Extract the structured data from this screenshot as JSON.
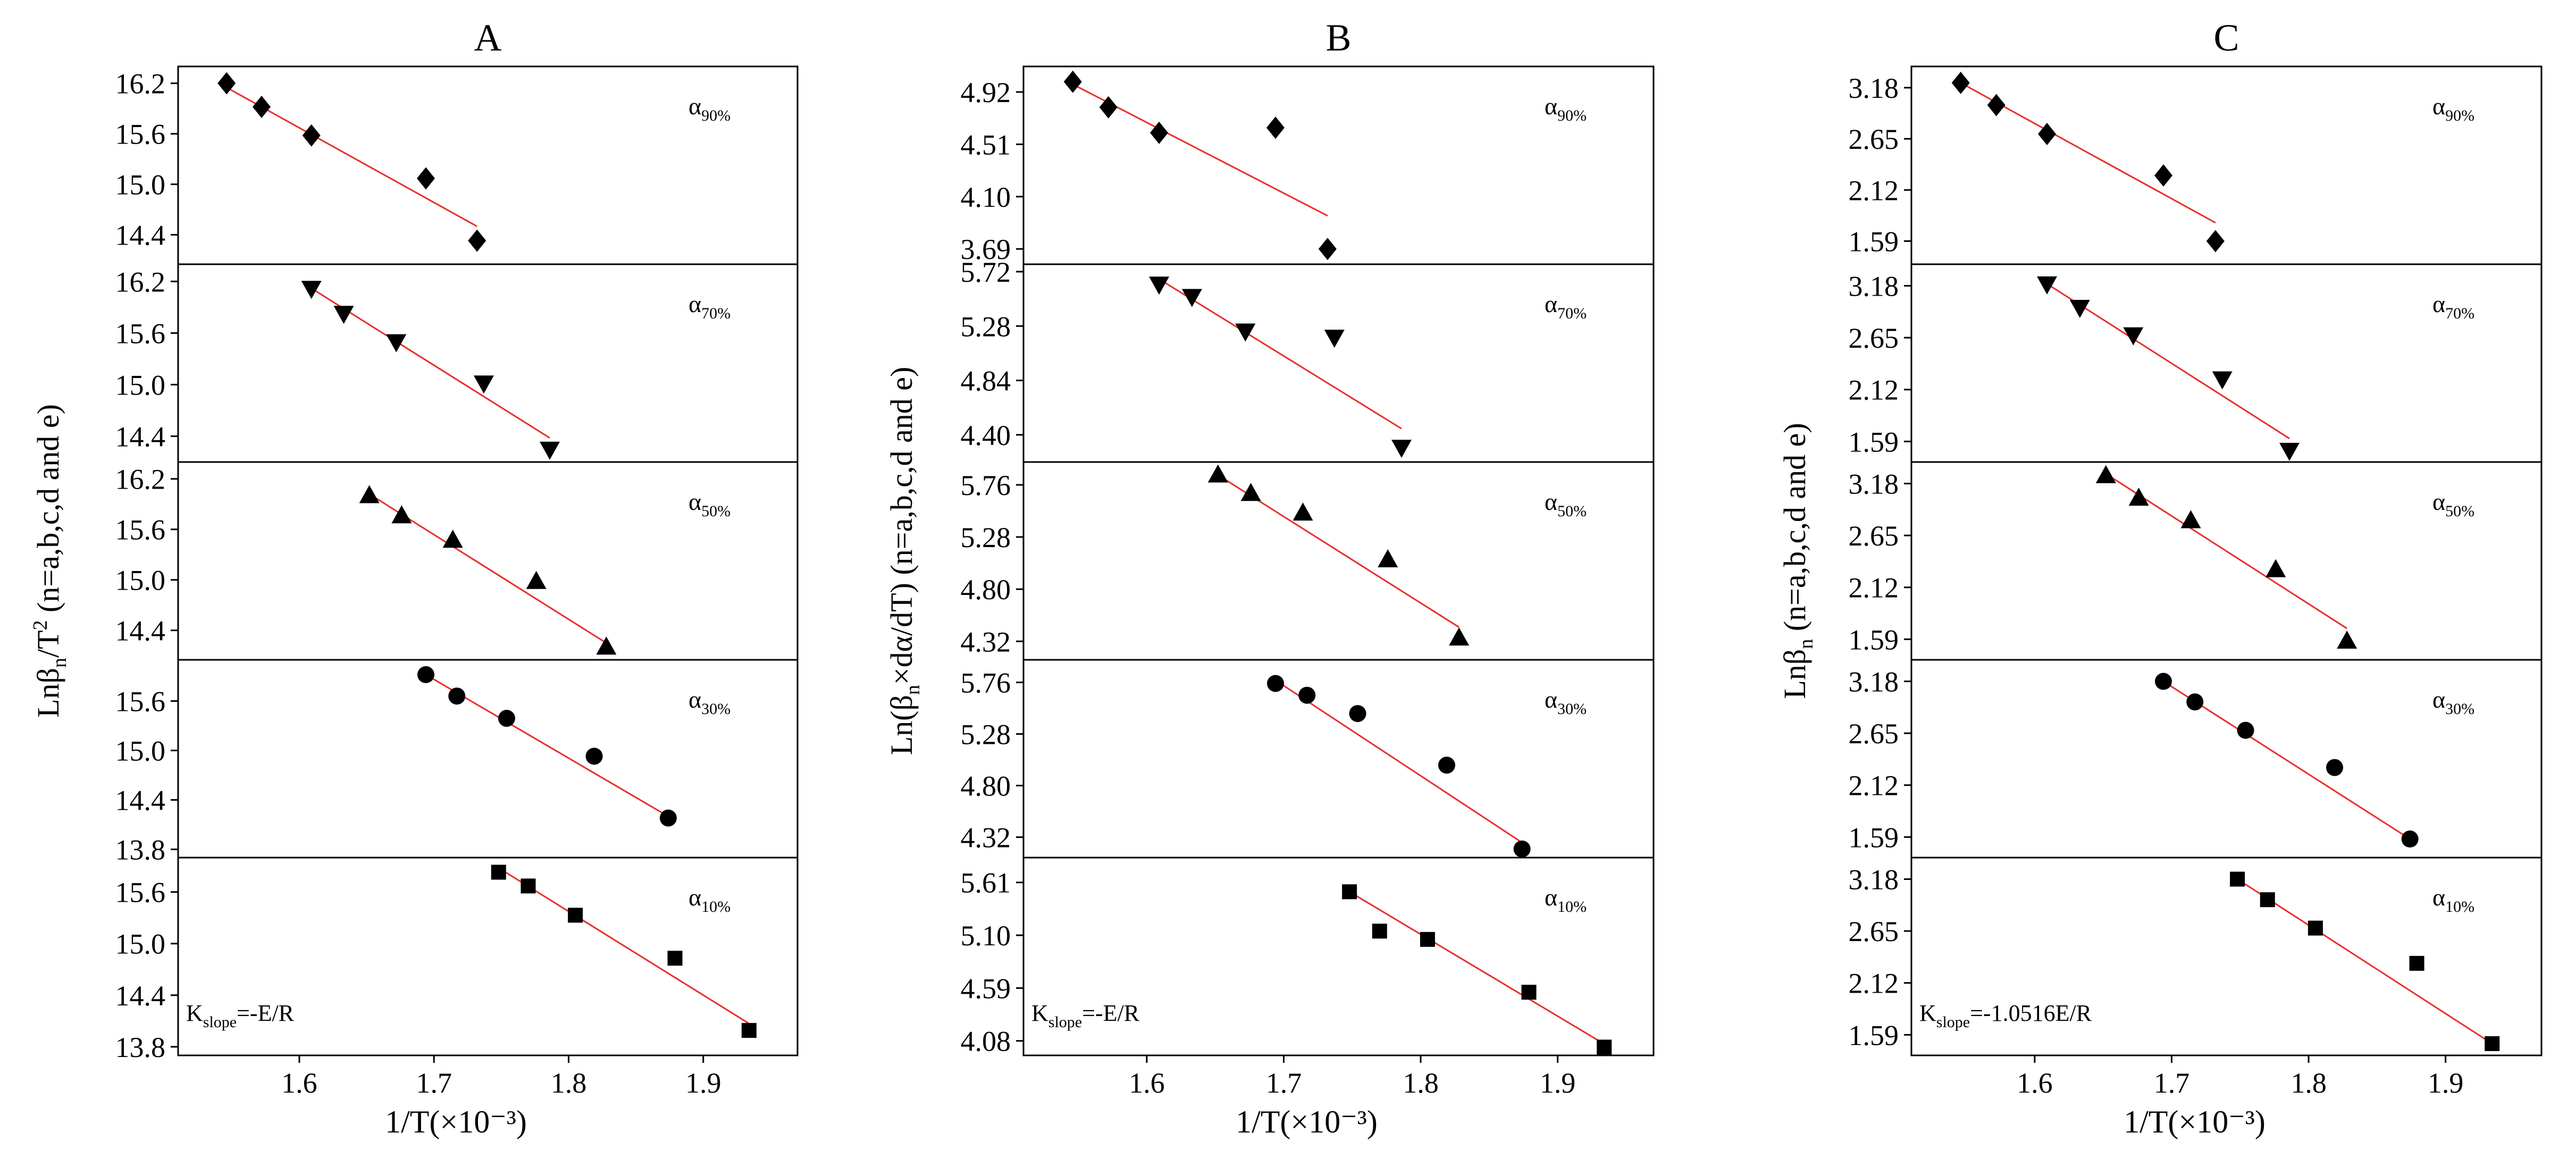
{
  "chart_data": [
    {
      "type": "scatter",
      "title": "A",
      "xlabel": "1/T(×10⁻³)",
      "ylabel": "Lnβn/T²  (n=a,b,c,d and e)",
      "ylabel_parts": {
        "main": "Lnβ",
        "sub": "n",
        "mid": "/T",
        "sup": "2",
        "tail": "  (n=a,b,c,d and e)"
      },
      "xlim": [
        1.51,
        1.97
      ],
      "xticks": [
        "1.6",
        "1.7",
        "1.8",
        "1.9"
      ],
      "annotation": {
        "main": "K",
        "sub": "slope",
        "tail": "=-E/R"
      },
      "panels": [
        {
          "label_main": "α",
          "label_sub": "90%",
          "marker": "diamond",
          "ylim": [
            14.05,
            16.4
          ],
          "yticks": [
            "16.2",
            "15.6",
            "15.0",
            "14.4"
          ],
          "x": [
            1.546,
            1.572,
            1.609,
            1.694,
            1.732
          ],
          "y": [
            16.2,
            15.92,
            15.58,
            15.07,
            14.33
          ],
          "fit": {
            "x": [
              1.546,
              1.732
            ],
            "y": [
              16.15,
              14.5
            ]
          }
        },
        {
          "label_main": "α",
          "label_sub": "70%",
          "marker": "triangle-down",
          "ylim": [
            14.1,
            16.4
          ],
          "yticks": [
            "16.2",
            "15.6",
            "15.0",
            "14.4"
          ],
          "x": [
            1.609,
            1.633,
            1.672,
            1.737,
            1.786
          ],
          "y": [
            16.12,
            15.83,
            15.5,
            15.02,
            14.25
          ],
          "fit": {
            "x": [
              1.609,
              1.786
            ],
            "y": [
              16.12,
              14.38
            ]
          }
        },
        {
          "label_main": "α",
          "label_sub": "50%",
          "marker": "triangle",
          "ylim": [
            14.05,
            16.4
          ],
          "yticks": [
            "16.2",
            "15.6",
            "15.0",
            "14.4"
          ],
          "x": [
            1.652,
            1.676,
            1.714,
            1.776,
            1.828
          ],
          "y": [
            16.0,
            15.76,
            15.47,
            14.98,
            14.2
          ],
          "fit": {
            "x": [
              1.652,
              1.828
            ],
            "y": [
              16.02,
              14.25
            ]
          }
        },
        {
          "label_main": "α",
          "label_sub": "30%",
          "marker": "circle",
          "ylim": [
            13.7,
            16.1
          ],
          "yticks": [
            "15.6",
            "15.0",
            "14.4",
            "13.8"
          ],
          "x": [
            1.694,
            1.717,
            1.754,
            1.819,
            1.874
          ],
          "y": [
            15.92,
            15.66,
            15.39,
            14.93,
            14.18
          ],
          "fit": {
            "x": [
              1.694,
              1.874
            ],
            "y": [
              15.92,
              14.2
            ]
          }
        },
        {
          "label_main": "α",
          "label_sub": "10%",
          "marker": "square",
          "ylim": [
            13.7,
            16.0
          ],
          "yticks": [
            "15.6",
            "15.0",
            "14.4",
            "13.8"
          ],
          "x": [
            1.748,
            1.77,
            1.805,
            1.879,
            1.934
          ],
          "y": [
            15.83,
            15.67,
            15.33,
            14.83,
            13.99
          ],
          "fit": {
            "x": [
              1.748,
              1.934
            ],
            "y": [
              15.88,
              14.07
            ]
          }
        }
      ]
    },
    {
      "type": "scatter",
      "title": "B",
      "xlabel": "1/T(×10⁻³)",
      "ylabel": "Ln(βn×dα/dT) (n=a,b,c,d and e)",
      "ylabel_parts": {
        "main": "Ln(β",
        "sub": "n",
        "mid": "×dα/dT) (n=a,b,c,d and e)",
        "sup": "",
        "tail": ""
      },
      "xlim": [
        1.51,
        1.97
      ],
      "xticks": [
        "1.6",
        "1.7",
        "1.8",
        "1.9"
      ],
      "annotation": {
        "main": "K",
        "sub": "slope",
        "tail": "=-E/R"
      },
      "panels": [
        {
          "label_main": "α",
          "label_sub": "90%",
          "marker": "diamond",
          "ylim": [
            3.57,
            5.12
          ],
          "yticks": [
            "4.92",
            "4.51",
            "4.10",
            "3.69"
          ],
          "x": [
            1.546,
            1.572,
            1.609,
            1.694,
            1.732
          ],
          "y": [
            5.0,
            4.8,
            4.6,
            4.64,
            3.69
          ],
          "fit": {
            "x": [
              1.546,
              1.732
            ],
            "y": [
              4.98,
              3.95
            ]
          }
        },
        {
          "label_main": "α",
          "label_sub": "70%",
          "marker": "triangle-down",
          "ylim": [
            4.18,
            5.78
          ],
          "yticks": [
            "5.72",
            "5.28",
            "4.84",
            "4.40"
          ],
          "x": [
            1.609,
            1.633,
            1.672,
            1.737,
            1.786
          ],
          "y": [
            5.62,
            5.52,
            5.24,
            5.19,
            4.3
          ],
          "fit": {
            "x": [
              1.609,
              1.786
            ],
            "y": [
              5.66,
              4.45
            ]
          }
        },
        {
          "label_main": "α",
          "label_sub": "50%",
          "marker": "triangle",
          "ylim": [
            4.15,
            5.97
          ],
          "yticks": [
            "5.76",
            "5.28",
            "4.80",
            "4.32"
          ],
          "x": [
            1.652,
            1.676,
            1.714,
            1.776,
            1.828
          ],
          "y": [
            5.85,
            5.68,
            5.5,
            5.07,
            4.35
          ],
          "fit": {
            "x": [
              1.652,
              1.828
            ],
            "y": [
              5.85,
              4.45
            ]
          }
        },
        {
          "label_main": "α",
          "label_sub": "30%",
          "marker": "circle",
          "ylim": [
            4.13,
            5.97
          ],
          "yticks": [
            "5.76",
            "5.28",
            "4.80",
            "4.32"
          ],
          "x": [
            1.694,
            1.717,
            1.754,
            1.819,
            1.874
          ],
          "y": [
            5.75,
            5.64,
            5.47,
            4.99,
            4.21
          ],
          "fit": {
            "x": [
              1.694,
              1.874
            ],
            "y": [
              5.78,
              4.27
            ]
          }
        },
        {
          "label_main": "α",
          "label_sub": "10%",
          "marker": "square",
          "ylim": [
            3.94,
            5.85
          ],
          "yticks": [
            "5.61",
            "5.10",
            "4.59",
            "4.08"
          ],
          "x": [
            1.748,
            1.77,
            1.805,
            1.879,
            1.934
          ],
          "y": [
            5.52,
            5.14,
            5.06,
            4.55,
            4.02
          ],
          "fit": {
            "x": [
              1.748,
              1.934
            ],
            "y": [
              5.52,
              4.05
            ]
          }
        }
      ]
    },
    {
      "type": "scatter",
      "title": "C",
      "xlabel": "1/T(×10⁻³)",
      "ylabel": "Lnβn (n=a,b,c,d and e)",
      "ylabel_parts": {
        "main": "Lnβ",
        "sub": "n",
        "mid": " (n=a,b,c,d and e)",
        "sup": "",
        "tail": ""
      },
      "xlim": [
        1.51,
        1.97
      ],
      "xticks": [
        "1.6",
        "1.7",
        "1.8",
        "1.9"
      ],
      "annotation": {
        "main": "K",
        "sub": "slope",
        "tail": "=-1.0516E/R"
      },
      "panels": [
        {
          "label_main": "α",
          "label_sub": "90%",
          "marker": "diamond",
          "ylim": [
            1.35,
            3.4
          ],
          "yticks": [
            "3.18",
            "2.65",
            "2.12",
            "1.59"
          ],
          "x": [
            1.546,
            1.572,
            1.609,
            1.694,
            1.732
          ],
          "y": [
            3.23,
            3.0,
            2.7,
            2.27,
            1.59
          ],
          "fit": {
            "x": [
              1.546,
              1.732
            ],
            "y": [
              3.23,
              1.78
            ]
          }
        },
        {
          "label_main": "α",
          "label_sub": "70%",
          "marker": "triangle-down",
          "ylim": [
            1.38,
            3.4
          ],
          "yticks": [
            "3.18",
            "2.65",
            "2.12",
            "1.59"
          ],
          "x": [
            1.609,
            1.633,
            1.672,
            1.737,
            1.786
          ],
          "y": [
            3.2,
            2.96,
            2.68,
            2.23,
            1.5
          ],
          "fit": {
            "x": [
              1.609,
              1.786
            ],
            "y": [
              3.2,
              1.62
            ]
          }
        },
        {
          "label_main": "α",
          "label_sub": "50%",
          "marker": "triangle",
          "ylim": [
            1.38,
            3.4
          ],
          "yticks": [
            "3.18",
            "2.65",
            "2.12",
            "1.59"
          ],
          "x": [
            1.652,
            1.676,
            1.714,
            1.776,
            1.828
          ],
          "y": [
            3.26,
            3.03,
            2.8,
            2.3,
            1.57
          ],
          "fit": {
            "x": [
              1.652,
              1.828
            ],
            "y": [
              3.28,
              1.7
            ]
          }
        },
        {
          "label_main": "α",
          "label_sub": "30%",
          "marker": "circle",
          "ylim": [
            1.38,
            3.4
          ],
          "yticks": [
            "3.18",
            "2.65",
            "2.12",
            "1.59"
          ],
          "x": [
            1.694,
            1.717,
            1.754,
            1.819,
            1.874
          ],
          "y": [
            3.18,
            2.97,
            2.68,
            2.3,
            1.57
          ],
          "fit": {
            "x": [
              1.694,
              1.874
            ],
            "y": [
              3.18,
              1.57
            ]
          }
        },
        {
          "label_main": "α",
          "label_sub": "10%",
          "marker": "square",
          "ylim": [
            1.38,
            3.4
          ],
          "yticks": [
            "3.18",
            "2.65",
            "2.12",
            "1.59"
          ],
          "x": [
            1.748,
            1.77,
            1.805,
            1.879,
            1.934
          ],
          "y": [
            3.18,
            2.97,
            2.68,
            2.32,
            1.5
          ],
          "fit": {
            "x": [
              1.748,
              1.934
            ],
            "y": [
              3.18,
              1.5
            ]
          }
        }
      ]
    }
  ],
  "colors": {
    "fit_line": "#e8302a",
    "marker": "#000000",
    "axis": "#000000"
  }
}
